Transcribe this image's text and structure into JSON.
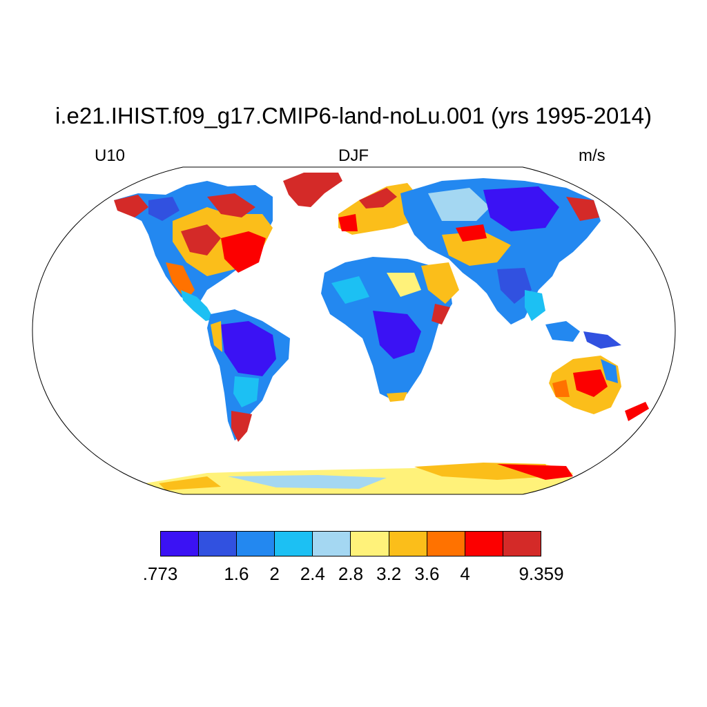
{
  "title": "i.e21.IHIST.f09_g17.CMIP6-land-noLu.001 (yrs 1995-2014)",
  "left_label": "U10",
  "center_label": "DJF",
  "right_label": "m/s",
  "colorbar": {
    "colors": [
      "#3b12f4",
      "#3151e0",
      "#2388f0",
      "#1cc0f3",
      "#a4d7f2",
      "#fff27a",
      "#fbbe1a",
      "#ff7200",
      "#fc0000",
      "#d42a28"
    ],
    "labels": [
      ".773",
      "1.6",
      "2",
      "2.4",
      "2.8",
      "3.2",
      "3.6",
      "4",
      "9.359"
    ],
    "label_boundary_index": [
      0,
      2,
      3,
      4,
      5,
      6,
      7,
      8,
      10
    ]
  },
  "map": {
    "projection": "Robinson",
    "ocean_color": "#ffffff"
  }
}
